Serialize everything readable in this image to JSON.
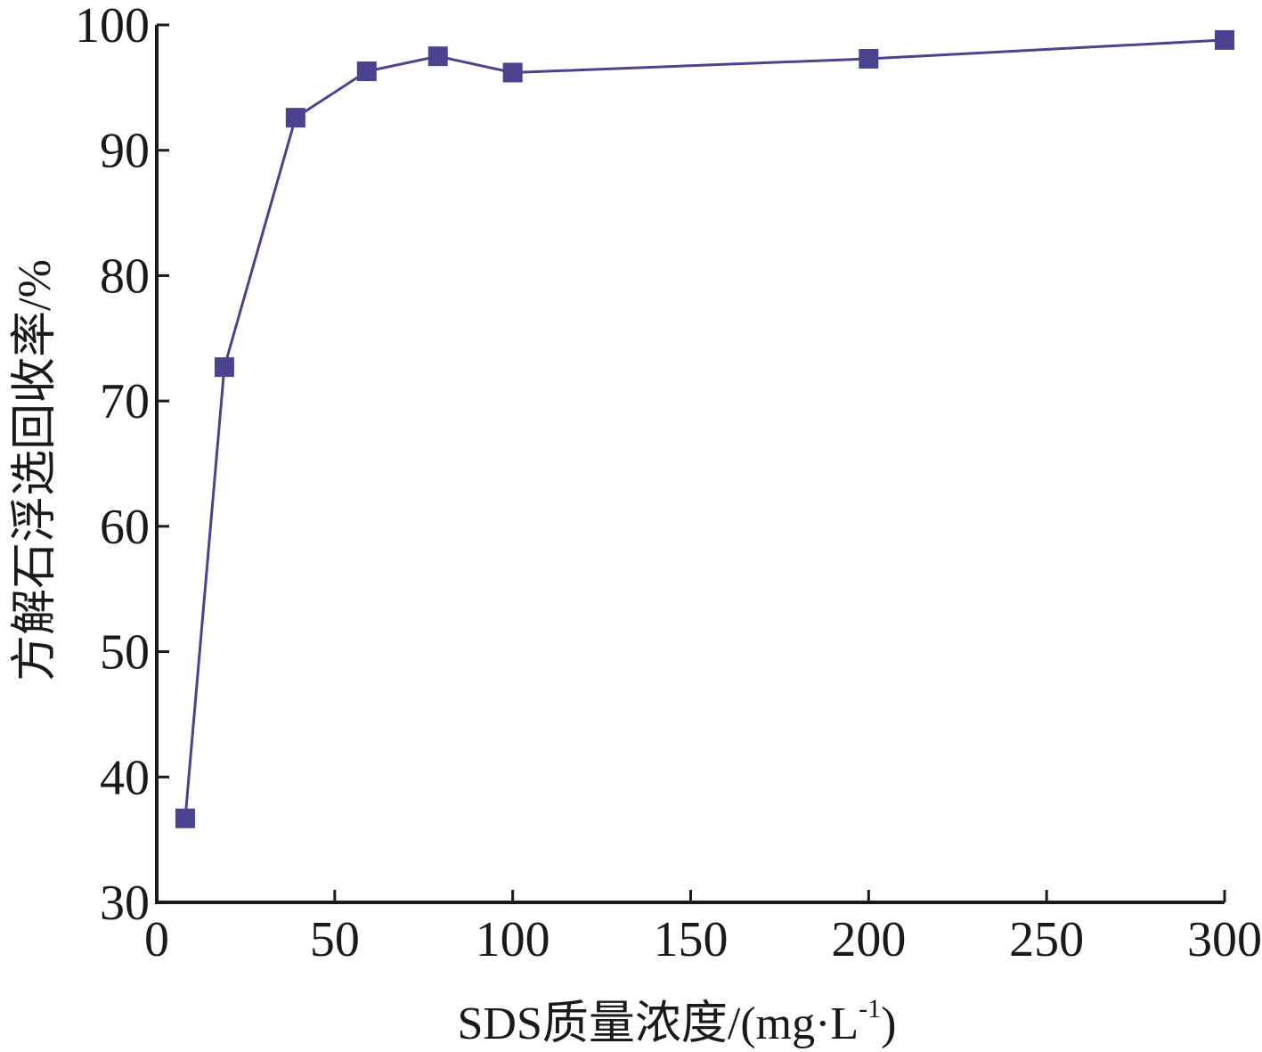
{
  "chart_data": {
    "type": "line",
    "title": "",
    "xlabel": "SDS质量浓度/(mg·L",
    "xlabel_sup": "-1",
    "xlabel_close": ")",
    "ylabel": "方解石浮选回收率/%",
    "xlim": [
      0,
      300
    ],
    "ylim": [
      30,
      100
    ],
    "x_ticks": [
      0,
      50,
      100,
      150,
      200,
      250,
      300
    ],
    "y_ticks": [
      30,
      40,
      50,
      60,
      70,
      80,
      90,
      100
    ],
    "grid": false,
    "legend": "none",
    "series": [
      {
        "color": "#4b4390",
        "marker": "square",
        "points": [
          {
            "x": 8,
            "y": 36.7
          },
          {
            "x": 19,
            "y": 72.7
          },
          {
            "x": 39,
            "y": 92.6
          },
          {
            "x": 59,
            "y": 96.3
          },
          {
            "x": 79,
            "y": 97.5
          },
          {
            "x": 100,
            "y": 96.2
          },
          {
            "x": 200,
            "y": 97.3
          },
          {
            "x": 300,
            "y": 98.8
          }
        ]
      }
    ]
  }
}
